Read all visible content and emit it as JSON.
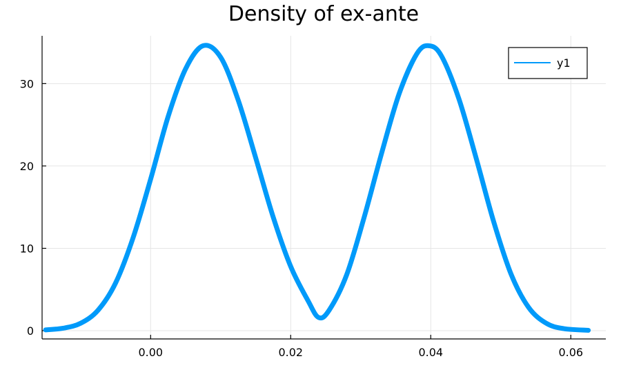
{
  "chart_data": {
    "type": "line",
    "title": "Density of ex-ante",
    "xlabel": "",
    "ylabel": "",
    "xlim": [
      -0.0155,
      0.065
    ],
    "ylim": [
      -1.0,
      35.8
    ],
    "xticks": [
      0.0,
      0.02,
      0.04,
      0.06
    ],
    "xtick_labels": [
      "0.00",
      "0.02",
      "0.04",
      "0.06"
    ],
    "yticks": [
      0,
      10,
      20,
      30
    ],
    "ytick_labels": [
      "0",
      "10",
      "20",
      "30"
    ],
    "grid": true,
    "legend": {
      "position": "top-right",
      "entries": [
        "y1"
      ]
    },
    "colors": {
      "series": "#009AFA",
      "grid": "#E5E5E5",
      "axis": "#000000"
    },
    "series": [
      {
        "name": "y1",
        "x": [
          -0.015,
          -0.0125,
          -0.01,
          -0.0075,
          -0.005,
          -0.0025,
          0.0,
          0.0025,
          0.005,
          0.0075,
          0.01,
          0.0125,
          0.015,
          0.0175,
          0.02,
          0.0225,
          0.024,
          0.0255,
          0.028,
          0.0305,
          0.033,
          0.0355,
          0.038,
          0.0397,
          0.0415,
          0.044,
          0.0465,
          0.049,
          0.0515,
          0.054,
          0.0565,
          0.059,
          0.0625
        ],
        "y": [
          0.1,
          0.3,
          0.9,
          2.5,
          5.8,
          11.3,
          18.4,
          26.0,
          31.8,
          34.6,
          33.2,
          28.0,
          21.0,
          13.8,
          7.8,
          3.6,
          1.6,
          2.5,
          6.8,
          13.8,
          21.6,
          28.8,
          33.6,
          34.6,
          33.4,
          28.2,
          20.9,
          13.2,
          6.8,
          2.8,
          0.9,
          0.25,
          0.05
        ]
      }
    ]
  }
}
